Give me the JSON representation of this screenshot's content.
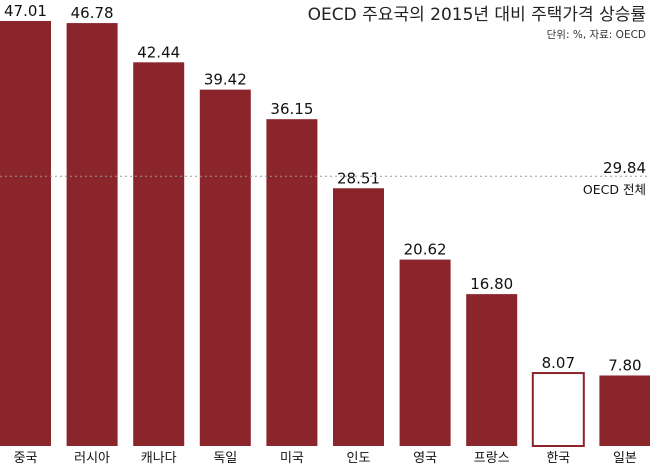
{
  "chart_data": {
    "type": "bar",
    "title": "OECD 주요국의 2015년 대비 주택가격 상승률",
    "subtitle": "단위: %, 자료: OECD",
    "categories": [
      "중국",
      "러시아",
      "캐나다",
      "독일",
      "미국",
      "인도",
      "영국",
      "프랑스",
      "한국",
      "일본"
    ],
    "values": [
      47.01,
      46.78,
      42.44,
      39.42,
      36.15,
      28.51,
      20.62,
      16.8,
      8.07,
      7.8
    ],
    "value_labels": [
      "47.01",
      "46.78",
      "42.44",
      "39.42",
      "36.15",
      "28.51",
      "20.62",
      "16.80",
      "8.07",
      "7.80"
    ],
    "highlight_category": "한국",
    "reference_line": {
      "value": 29.84,
      "value_label": "29.84",
      "label": "OECD 전체"
    },
    "ylim": [
      0,
      47.01
    ],
    "xlabel": "",
    "ylabel": "",
    "grid": false,
    "colors": {
      "bar": "#8B252C",
      "highlight_fill": "#ffffff",
      "reference_line": "#999999"
    }
  }
}
